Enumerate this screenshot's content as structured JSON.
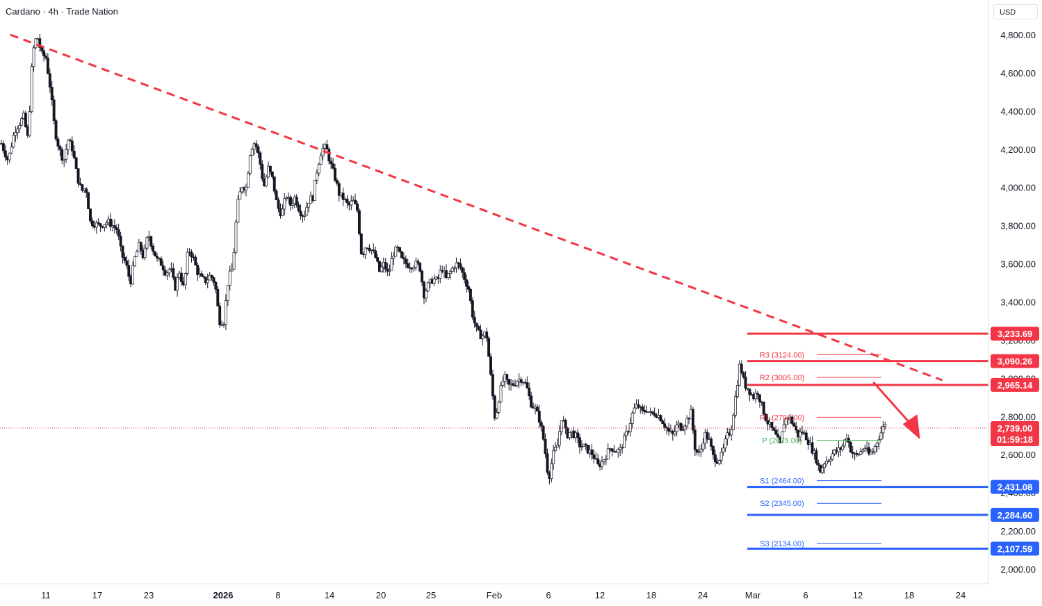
{
  "header": {
    "title": "Cardano · 4h · Trade Nation",
    "currency": "USD"
  },
  "colors": {
    "up": "#ffffff",
    "down": "#131722",
    "resistance": "#f23645",
    "support": "#2962ff",
    "pivot": "#4caf50",
    "trendline": "#f23645",
    "last_price": "#f23645"
  },
  "chart_data": {
    "type": "candlestick",
    "ylim": [
      1950,
      4850
    ],
    "y_ticks": [
      4800,
      4600,
      4400,
      4200,
      4000,
      3800,
      3600,
      3400,
      3200,
      3000,
      2800,
      2600,
      2400,
      2200,
      2000
    ],
    "y_tick_labels": [
      "4,800.00",
      "4,600.00",
      "4,400.00",
      "4,200.00",
      "4,000.00",
      "3,800.00",
      "3,600.00",
      "3,400.00",
      "3,200.00",
      "3,000.00",
      "2,800.00",
      "2,600.00",
      "2,400.00",
      "2,200.00",
      "2,000.00"
    ],
    "x_ticks": [
      {
        "label": "11",
        "bold": false
      },
      {
        "label": "17",
        "bold": false
      },
      {
        "label": "23",
        "bold": false
      },
      {
        "label": "2026",
        "bold": true
      },
      {
        "label": "8",
        "bold": false
      },
      {
        "label": "14",
        "bold": false
      },
      {
        "label": "20",
        "bold": false
      },
      {
        "label": "25",
        "bold": false
      },
      {
        "label": "Feb",
        "bold": false
      },
      {
        "label": "6",
        "bold": false
      },
      {
        "label": "12",
        "bold": false
      },
      {
        "label": "18",
        "bold": false
      },
      {
        "label": "24",
        "bold": false
      },
      {
        "label": "Mar",
        "bold": false
      },
      {
        "label": "6",
        "bold": false
      },
      {
        "label": "12",
        "bold": false
      },
      {
        "label": "18",
        "bold": false
      },
      {
        "label": "24",
        "bold": false
      }
    ],
    "price_path": [
      [
        0,
        4230
      ],
      [
        3,
        4140
      ],
      [
        6,
        4300
      ],
      [
        10,
        4370
      ],
      [
        12,
        4250
      ],
      [
        14,
        4700
      ],
      [
        16,
        4800
      ],
      [
        18,
        4700
      ],
      [
        20,
        4680
      ],
      [
        22,
        4520
      ],
      [
        24,
        4300
      ],
      [
        26,
        4200
      ],
      [
        28,
        4140
      ],
      [
        30,
        4250
      ],
      [
        32,
        4200
      ],
      [
        34,
        4060
      ],
      [
        36,
        3980
      ],
      [
        38,
        4000
      ],
      [
        40,
        3820
      ],
      [
        44,
        3800
      ],
      [
        48,
        3820
      ],
      [
        52,
        3780
      ],
      [
        54,
        3650
      ],
      [
        56,
        3600
      ],
      [
        58,
        3500
      ],
      [
        60,
        3630
      ],
      [
        62,
        3700
      ],
      [
        64,
        3630
      ],
      [
        66,
        3760
      ],
      [
        68,
        3680
      ],
      [
        70,
        3620
      ],
      [
        72,
        3600
      ],
      [
        74,
        3550
      ],
      [
        76,
        3580
      ],
      [
        78,
        3470
      ],
      [
        80,
        3560
      ],
      [
        82,
        3470
      ],
      [
        84,
        3680
      ],
      [
        86,
        3640
      ],
      [
        88,
        3560
      ],
      [
        90,
        3520
      ],
      [
        92,
        3510
      ],
      [
        94,
        3540
      ],
      [
        96,
        3500
      ],
      [
        98,
        3300
      ],
      [
        100,
        3300
      ],
      [
        102,
        3520
      ],
      [
        104,
        3580
      ],
      [
        106,
        3900
      ],
      [
        108,
        4010
      ],
      [
        110,
        4000
      ],
      [
        112,
        4200
      ],
      [
        114,
        4240
      ],
      [
        116,
        4150
      ],
      [
        118,
        4000
      ],
      [
        120,
        4100
      ],
      [
        122,
        4040
      ],
      [
        124,
        3900
      ],
      [
        126,
        3860
      ],
      [
        128,
        3960
      ],
      [
        130,
        3910
      ],
      [
        132,
        3950
      ],
      [
        134,
        3880
      ],
      [
        136,
        3850
      ],
      [
        138,
        3930
      ],
      [
        140,
        3950
      ],
      [
        142,
        4100
      ],
      [
        144,
        4200
      ],
      [
        146,
        4210
      ],
      [
        148,
        4120
      ],
      [
        150,
        4050
      ],
      [
        152,
        3960
      ],
      [
        154,
        3940
      ],
      [
        156,
        3900
      ],
      [
        158,
        3930
      ],
      [
        160,
        3880
      ],
      [
        162,
        3640
      ],
      [
        164,
        3700
      ],
      [
        166,
        3680
      ],
      [
        168,
        3640
      ],
      [
        170,
        3560
      ],
      [
        172,
        3600
      ],
      [
        174,
        3540
      ],
      [
        176,
        3650
      ],
      [
        178,
        3680
      ],
      [
        180,
        3620
      ],
      [
        182,
        3600
      ],
      [
        184,
        3590
      ],
      [
        186,
        3600
      ],
      [
        188,
        3590
      ],
      [
        190,
        3440
      ],
      [
        192,
        3490
      ],
      [
        194,
        3520
      ],
      [
        196,
        3510
      ],
      [
        198,
        3580
      ],
      [
        200,
        3520
      ],
      [
        202,
        3560
      ],
      [
        204,
        3600
      ],
      [
        206,
        3590
      ],
      [
        208,
        3530
      ],
      [
        210,
        3470
      ],
      [
        212,
        3320
      ],
      [
        214,
        3240
      ],
      [
        216,
        3220
      ],
      [
        218,
        3240
      ],
      [
        222,
        2780
      ],
      [
        224,
        2920
      ],
      [
        226,
        3010
      ],
      [
        228,
        2960
      ],
      [
        230,
        2970
      ],
      [
        232,
        2990
      ],
      [
        234,
        3000
      ],
      [
        236,
        2960
      ],
      [
        238,
        2870
      ],
      [
        240,
        2840
      ],
      [
        242,
        2780
      ],
      [
        244,
        2660
      ],
      [
        246,
        2470
      ],
      [
        248,
        2600
      ],
      [
        250,
        2650
      ],
      [
        252,
        2810
      ],
      [
        254,
        2700
      ],
      [
        256,
        2720
      ],
      [
        258,
        2700
      ],
      [
        260,
        2650
      ],
      [
        262,
        2640
      ],
      [
        264,
        2620
      ],
      [
        266,
        2600
      ],
      [
        268,
        2540
      ],
      [
        270,
        2560
      ],
      [
        272,
        2600
      ],
      [
        274,
        2640
      ],
      [
        276,
        2620
      ],
      [
        278,
        2620
      ],
      [
        280,
        2680
      ],
      [
        282,
        2740
      ],
      [
        284,
        2830
      ],
      [
        286,
        2860
      ],
      [
        288,
        2820
      ],
      [
        290,
        2840
      ],
      [
        292,
        2810
      ],
      [
        294,
        2820
      ],
      [
        296,
        2800
      ],
      [
        298,
        2760
      ],
      [
        300,
        2720
      ],
      [
        302,
        2700
      ],
      [
        304,
        2760
      ],
      [
        306,
        2740
      ],
      [
        308,
        2780
      ],
      [
        310,
        2820
      ],
      [
        312,
        2620
      ],
      [
        314,
        2600
      ],
      [
        316,
        2710
      ],
      [
        318,
        2680
      ],
      [
        320,
        2590
      ],
      [
        322,
        2570
      ],
      [
        324,
        2600
      ],
      [
        326,
        2690
      ],
      [
        328,
        2730
      ],
      [
        330,
        2900
      ],
      [
        332,
        3080
      ],
      [
        334,
        2970
      ],
      [
        336,
        2940
      ],
      [
        338,
        2900
      ],
      [
        340,
        2930
      ],
      [
        342,
        2850
      ],
      [
        344,
        2780
      ],
      [
        346,
        2740
      ],
      [
        348,
        2700
      ],
      [
        350,
        2650
      ],
      [
        352,
        2780
      ],
      [
        354,
        2800
      ],
      [
        356,
        2760
      ],
      [
        358,
        2700
      ],
      [
        360,
        2720
      ],
      [
        362,
        2690
      ],
      [
        364,
        2640
      ],
      [
        366,
        2590
      ],
      [
        368,
        2510
      ],
      [
        370,
        2560
      ],
      [
        372,
        2580
      ],
      [
        374,
        2610
      ],
      [
        376,
        2620
      ],
      [
        378,
        2640
      ],
      [
        380,
        2700
      ],
      [
        382,
        2620
      ],
      [
        384,
        2590
      ],
      [
        386,
        2610
      ],
      [
        388,
        2640
      ],
      [
        390,
        2600
      ],
      [
        392,
        2620
      ],
      [
        394,
        2680
      ],
      [
        396,
        2730
      ],
      [
        398,
        2790
      ]
    ],
    "x_max": 398,
    "trendline": {
      "from": [
        4,
        4800
      ],
      "to": [
        423,
        2990
      ]
    },
    "last_price": {
      "value": 2739.0,
      "label": "2,739.00",
      "countdown": "01:59:18"
    },
    "levels": [
      {
        "name": "resistance-1",
        "value": 3233.69,
        "label": "3,233.69",
        "type": "resistance"
      },
      {
        "name": "resistance-2",
        "value": 3090.26,
        "label": "3,090.26",
        "type": "resistance"
      },
      {
        "name": "resistance-3",
        "value": 2965.14,
        "label": "2,965.14",
        "type": "resistance"
      },
      {
        "name": "support-1",
        "value": 2431.08,
        "label": "2,431.08",
        "type": "support"
      },
      {
        "name": "support-2",
        "value": 2284.6,
        "label": "2,284.60",
        "type": "support"
      },
      {
        "name": "support-3",
        "value": 2107.59,
        "label": "2,107.59",
        "type": "support"
      }
    ],
    "pivots": [
      {
        "name": "R3",
        "label": "R3 (3124.00)",
        "value": 3124.0,
        "type": "resistance"
      },
      {
        "name": "R2",
        "label": "R2 (3005.00)",
        "value": 3005.0,
        "type": "resistance"
      },
      {
        "name": "R1",
        "label": "R1 (2796.00)",
        "value": 2796.0,
        "type": "resistance"
      },
      {
        "name": "P",
        "label": "P (2675.00)",
        "value": 2675.0,
        "type": "pivot"
      },
      {
        "name": "S1",
        "label": "S1 (2464.00)",
        "value": 2464.0,
        "type": "support"
      },
      {
        "name": "S2",
        "label": "S2 (2345.00)",
        "value": 2345.0,
        "type": "support"
      },
      {
        "name": "S3",
        "label": "S3 (2134.00)",
        "value": 2134.0,
        "type": "support"
      }
    ],
    "arrow": {
      "from": [
        392,
        2980
      ],
      "to": [
        413,
        2680
      ]
    }
  }
}
